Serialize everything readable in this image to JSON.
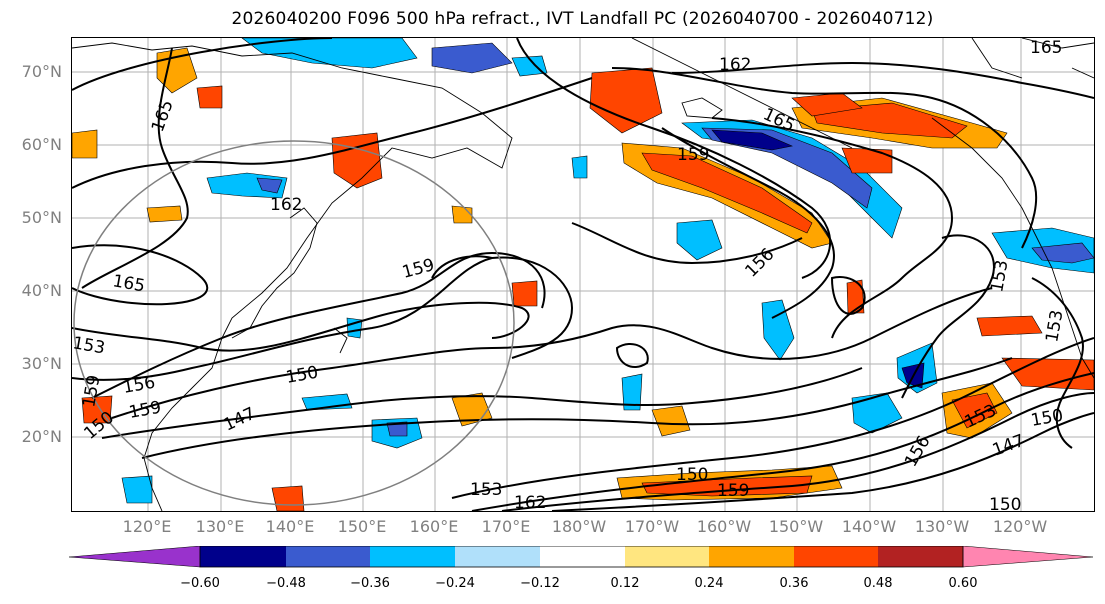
{
  "title": "2026040200 F096 500 hPa refract., IVT Landfall PC (2026040700 - 2026040712)",
  "lat_labels": [
    "70°N",
    "60°N",
    "50°N",
    "40°N",
    "30°N",
    "20°N"
  ],
  "lon_labels": [
    "120°E",
    "130°E",
    "140°E",
    "150°E",
    "160°E",
    "170°E",
    "180°W",
    "170°W",
    "160°W",
    "150°W",
    "140°W",
    "130°W",
    "120°W"
  ],
  "colorbar": {
    "ticks": [
      "−0.60",
      "−0.48",
      "−0.36",
      "−0.24",
      "−0.12",
      "0.12",
      "0.24",
      "0.36",
      "0.48",
      "0.60"
    ],
    "colors": [
      "#9932cc",
      "#00008b",
      "#3a5bcf",
      "#00bfff",
      "#b0e0fa",
      "#ffffff",
      "#ffe680",
      "#ffa500",
      "#ff4500",
      "#b22222",
      "#ff85b0"
    ]
  },
  "contour_labels": [
    "162",
    "165",
    "165",
    "159",
    "165",
    "162",
    "165",
    "159",
    "156",
    "153",
    "153",
    "153",
    "156",
    "159",
    "159",
    "150",
    "147",
    "150",
    "150",
    "153",
    "162",
    "159",
    "156",
    "153",
    "147",
    "150",
    "150"
  ],
  "map": {
    "fill_colors": {
      "neg_light": "#00bfff",
      "neg_mid": "#3a5bcf",
      "neg_dark": "#00008b",
      "pos_light": "#ffa500",
      "pos_mid": "#ff4500",
      "pos_dark": "#b22222",
      "pos_halo": "#ffe680"
    },
    "contour_color": "#000000",
    "circle_color": "#808080",
    "grid_color": "#a0a0a0"
  }
}
